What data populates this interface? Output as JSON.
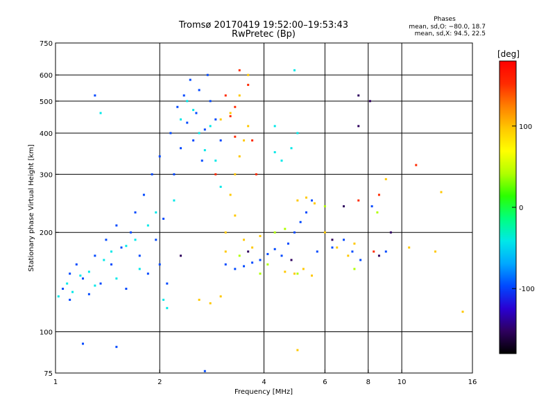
{
  "chart_data": {
    "type": "scatter",
    "title": "Tromsø 20170419 19:52:00–19:53:43",
    "subtitle": "RwPretec (Bp)",
    "xlabel": "Frequency [MHz]",
    "ylabel": "Stationary phase Virtual Height [km]",
    "x_scale": "log",
    "y_scale": "log",
    "xlim": [
      1,
      16
    ],
    "ylim": [
      75,
      750
    ],
    "x_ticks": [
      1,
      2,
      4,
      6,
      8,
      10,
      16
    ],
    "y_ticks": [
      75,
      100,
      200,
      300,
      400,
      500,
      600,
      750
    ],
    "x_grid": [
      2,
      4,
      6,
      8,
      10
    ],
    "y_grid": [
      100,
      200,
      300,
      400,
      500,
      600
    ],
    "grid": true,
    "stats": {
      "heading": "Phases",
      "line1": "mean, sd,O: −80.0, 18.7",
      "line2": "mean, sd,X:  94.5, 22.5"
    },
    "colorbar": {
      "label": "[deg]",
      "ticks": [
        100,
        0,
        -100
      ],
      "range": [
        -180,
        180
      ],
      "colors": [
        "#000000",
        "#2e005e",
        "#2a00d2",
        "#0048ff",
        "#00a8ff",
        "#00e8e8",
        "#00ff7f",
        "#2bff00",
        "#b0ff00",
        "#ffff00",
        "#ffc800",
        "#ff7f00",
        "#ff2a00",
        "#ff0000"
      ]
    },
    "series": [
      {
        "color_deg": -100,
        "points": [
          [
            1.05,
            135
          ],
          [
            1.1,
            150
          ],
          [
            1.1,
            125
          ],
          [
            1.15,
            160
          ],
          [
            1.2,
            145
          ],
          [
            1.25,
            130
          ],
          [
            1.3,
            170
          ],
          [
            1.35,
            140
          ],
          [
            1.4,
            190
          ],
          [
            1.45,
            160
          ],
          [
            1.5,
            210
          ],
          [
            1.55,
            180
          ],
          [
            1.6,
            135
          ],
          [
            1.65,
            200
          ],
          [
            1.7,
            230
          ],
          [
            1.75,
            170
          ],
          [
            1.8,
            260
          ],
          [
            1.85,
            150
          ],
          [
            1.9,
            300
          ],
          [
            1.95,
            190
          ],
          [
            2.0,
            340
          ],
          [
            2.0,
            160
          ],
          [
            2.05,
            220
          ],
          [
            2.1,
            140
          ],
          [
            2.15,
            400
          ],
          [
            2.2,
            300
          ],
          [
            2.25,
            480
          ],
          [
            2.3,
            360
          ],
          [
            2.35,
            520
          ],
          [
            2.4,
            430
          ],
          [
            2.45,
            580
          ],
          [
            2.5,
            380
          ],
          [
            2.55,
            460
          ],
          [
            2.6,
            540
          ],
          [
            2.65,
            330
          ],
          [
            2.7,
            410
          ],
          [
            2.75,
            600
          ],
          [
            2.8,
            500
          ],
          [
            2.9,
            440
          ],
          [
            3.0,
            380
          ],
          [
            3.1,
            160
          ],
          [
            3.3,
            155
          ],
          [
            3.5,
            158
          ],
          [
            3.7,
            162
          ],
          [
            3.9,
            165
          ],
          [
            4.1,
            172
          ],
          [
            4.3,
            178
          ],
          [
            4.5,
            170
          ],
          [
            4.7,
            185
          ],
          [
            4.9,
            200
          ],
          [
            5.1,
            215
          ],
          [
            5.3,
            230
          ],
          [
            5.5,
            250
          ],
          [
            5.7,
            175
          ],
          [
            6.3,
            180
          ],
          [
            6.8,
            190
          ],
          [
            7.2,
            175
          ],
          [
            7.6,
            165
          ],
          [
            8.2,
            240
          ],
          [
            9.0,
            175
          ],
          [
            1.3,
            520
          ],
          [
            1.5,
            90
          ],
          [
            2.7,
            76
          ],
          [
            1.2,
            92
          ]
        ]
      },
      {
        "color_deg": -40,
        "points": [
          [
            1.02,
            128
          ],
          [
            1.08,
            140
          ],
          [
            1.12,
            132
          ],
          [
            1.18,
            148
          ],
          [
            1.25,
            152
          ],
          [
            1.3,
            138
          ],
          [
            1.38,
            165
          ],
          [
            1.45,
            175
          ],
          [
            1.5,
            145
          ],
          [
            1.6,
            182
          ],
          [
            1.7,
            190
          ],
          [
            1.75,
            155
          ],
          [
            1.85,
            210
          ],
          [
            1.95,
            230
          ],
          [
            2.05,
            125
          ],
          [
            2.1,
            118
          ],
          [
            2.2,
            250
          ],
          [
            2.3,
            440
          ],
          [
            2.4,
            500
          ],
          [
            2.5,
            470
          ],
          [
            2.6,
            400
          ],
          [
            2.7,
            355
          ],
          [
            2.8,
            420
          ],
          [
            2.9,
            330
          ],
          [
            3.0,
            275
          ],
          [
            4.3,
            350
          ],
          [
            4.5,
            330
          ],
          [
            4.8,
            360
          ],
          [
            5.0,
            400
          ],
          [
            4.9,
            620
          ],
          [
            4.3,
            420
          ],
          [
            1.35,
            460
          ]
        ]
      },
      {
        "color_deg": 100,
        "points": [
          [
            2.6,
            125
          ],
          [
            2.8,
            122
          ],
          [
            3.0,
            128
          ],
          [
            3.1,
            175
          ],
          [
            3.2,
            260
          ],
          [
            3.3,
            300
          ],
          [
            3.4,
            340
          ],
          [
            3.5,
            380
          ],
          [
            3.6,
            420
          ],
          [
            3.2,
            460
          ],
          [
            3.4,
            520
          ],
          [
            3.6,
            600
          ],
          [
            3.0,
            440
          ],
          [
            3.1,
            200
          ],
          [
            3.3,
            225
          ],
          [
            3.5,
            190
          ],
          [
            3.7,
            180
          ],
          [
            3.9,
            195
          ],
          [
            4.6,
            152
          ],
          [
            4.9,
            150
          ],
          [
            5.2,
            155
          ],
          [
            5.5,
            148
          ],
          [
            5.0,
            250
          ],
          [
            5.3,
            255
          ],
          [
            5.6,
            245
          ],
          [
            6.0,
            200
          ],
          [
            6.5,
            180
          ],
          [
            7.0,
            170
          ],
          [
            7.3,
            185
          ],
          [
            9.0,
            290
          ],
          [
            10.5,
            180
          ],
          [
            12.5,
            175
          ],
          [
            15.0,
            115
          ],
          [
            5.0,
            88
          ],
          [
            13.0,
            265
          ]
        ]
      },
      {
        "color_deg": 150,
        "points": [
          [
            3.1,
            520
          ],
          [
            3.2,
            450
          ],
          [
            3.3,
            480
          ],
          [
            3.4,
            620
          ],
          [
            3.6,
            560
          ],
          [
            3.7,
            380
          ],
          [
            3.8,
            300
          ],
          [
            3.3,
            390
          ],
          [
            2.9,
            300
          ],
          [
            7.5,
            250
          ],
          [
            8.6,
            260
          ],
          [
            8.3,
            175
          ],
          [
            11.0,
            320
          ]
        ]
      },
      {
        "color_deg": 40,
        "points": [
          [
            3.4,
            170
          ],
          [
            3.9,
            150
          ],
          [
            4.1,
            160
          ],
          [
            5.0,
            150
          ],
          [
            4.3,
            200
          ],
          [
            4.6,
            205
          ],
          [
            6.0,
            240
          ],
          [
            7.3,
            155
          ],
          [
            8.5,
            230
          ]
        ]
      },
      {
        "color_deg": -150,
        "points": [
          [
            2.3,
            170
          ],
          [
            3.6,
            175
          ],
          [
            4.8,
            165
          ],
          [
            6.3,
            190
          ],
          [
            6.8,
            240
          ],
          [
            7.5,
            520
          ],
          [
            7.5,
            420
          ],
          [
            8.1,
            500
          ],
          [
            8.6,
            170
          ],
          [
            9.3,
            200
          ]
        ]
      }
    ]
  }
}
